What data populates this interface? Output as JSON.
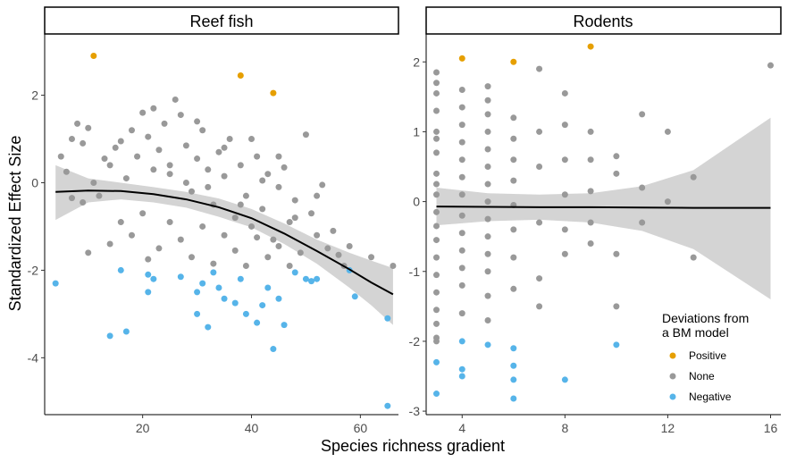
{
  "chart_data": {
    "type": "scatter",
    "ylabel": "Standardized Effect Size",
    "xlabel": "Species richness gradient",
    "legend": {
      "title": "Deviations from a BM model",
      "title_lines": [
        "Deviations from",
        "a BM model"
      ],
      "placement": "bottom-right",
      "entries": [
        {
          "key": "Positive",
          "label": "Positive",
          "color": "#E69F00"
        },
        {
          "key": "None",
          "label": "None",
          "color": "#999999"
        },
        {
          "key": "Negative",
          "label": "Negative",
          "color": "#56B4E9"
        }
      ]
    },
    "panels": [
      {
        "title": "Reef fish",
        "xlim": [
          2,
          67
        ],
        "ylim": [
          -5.3,
          3.4
        ],
        "xticks": [
          20,
          40,
          60
        ],
        "yticks": [
          -4,
          -2,
          0,
          2
        ],
        "fit_line": [
          [
            4,
            -0.21
          ],
          [
            10,
            -0.18
          ],
          [
            16,
            -0.19
          ],
          [
            22,
            -0.26
          ],
          [
            28,
            -0.38
          ],
          [
            34,
            -0.56
          ],
          [
            40,
            -0.81
          ],
          [
            46,
            -1.16
          ],
          [
            52,
            -1.56
          ],
          [
            58,
            -1.98
          ],
          [
            62,
            -2.28
          ],
          [
            66,
            -2.55
          ]
        ],
        "ci_upper": [
          [
            4,
            0.4
          ],
          [
            10,
            0.1
          ],
          [
            16,
            0.0
          ],
          [
            22,
            -0.1
          ],
          [
            28,
            -0.21
          ],
          [
            34,
            -0.36
          ],
          [
            40,
            -0.6
          ],
          [
            46,
            -0.93
          ],
          [
            52,
            -1.3
          ],
          [
            58,
            -1.6
          ],
          [
            62,
            -1.78
          ],
          [
            66,
            -1.95
          ]
        ],
        "ci_lower": [
          [
            4,
            -0.85
          ],
          [
            10,
            -0.45
          ],
          [
            16,
            -0.38
          ],
          [
            22,
            -0.45
          ],
          [
            28,
            -0.57
          ],
          [
            34,
            -0.78
          ],
          [
            40,
            -1.02
          ],
          [
            46,
            -1.4
          ],
          [
            52,
            -1.85
          ],
          [
            58,
            -2.4
          ],
          [
            62,
            -2.8
          ],
          [
            66,
            -3.25
          ]
        ],
        "points": {
          "Positive": [
            [
              11,
              2.9
            ],
            [
              38,
              2.45
            ],
            [
              44,
              2.05
            ]
          ],
          "None": [
            [
              5,
              0.6
            ],
            [
              7,
              1.0
            ],
            [
              8,
              1.35
            ],
            [
              9,
              0.9
            ],
            [
              10,
              1.25
            ],
            [
              6,
              0.25
            ],
            [
              7,
              -0.35
            ],
            [
              9,
              -0.45
            ],
            [
              11,
              0.0
            ],
            [
              12,
              -0.3
            ],
            [
              13,
              0.55
            ],
            [
              14,
              0.4
            ],
            [
              15,
              0.8
            ],
            [
              16,
              0.95
            ],
            [
              17,
              0.1
            ],
            [
              18,
              1.2
            ],
            [
              19,
              0.6
            ],
            [
              20,
              1.6
            ],
            [
              21,
              1.05
            ],
            [
              22,
              0.3
            ],
            [
              23,
              0.75
            ],
            [
              24,
              1.35
            ],
            [
              25,
              0.2
            ],
            [
              26,
              1.9
            ],
            [
              27,
              1.55
            ],
            [
              28,
              0.85
            ],
            [
              29,
              -0.2
            ],
            [
              30,
              0.55
            ],
            [
              31,
              1.2
            ],
            [
              32,
              0.3
            ],
            [
              33,
              -0.5
            ],
            [
              34,
              0.7
            ],
            [
              35,
              0.15
            ],
            [
              36,
              1.0
            ],
            [
              37,
              -0.8
            ],
            [
              38,
              0.4
            ],
            [
              39,
              -0.3
            ],
            [
              40,
              -1.0
            ],
            [
              41,
              0.6
            ],
            [
              42,
              -0.6
            ],
            [
              43,
              0.2
            ],
            [
              44,
              -1.3
            ],
            [
              45,
              -0.1
            ],
            [
              46,
              0.35
            ],
            [
              47,
              -0.9
            ],
            [
              48,
              -0.4
            ],
            [
              49,
              -1.6
            ],
            [
              50,
              1.1
            ],
            [
              51,
              -0.7
            ],
            [
              52,
              -1.2
            ],
            [
              53,
              -0.05
            ],
            [
              54,
              -1.5
            ],
            [
              55,
              -1.1
            ],
            [
              56,
              -1.65
            ],
            [
              57,
              -1.9
            ],
            [
              58,
              -1.45
            ],
            [
              10,
              -1.6
            ],
            [
              14,
              -1.4
            ],
            [
              16,
              -0.9
            ],
            [
              18,
              -1.2
            ],
            [
              20,
              -0.7
            ],
            [
              21,
              -1.75
            ],
            [
              23,
              -1.5
            ],
            [
              25,
              -0.9
            ],
            [
              27,
              -1.3
            ],
            [
              29,
              -1.7
            ],
            [
              31,
              -1.0
            ],
            [
              33,
              -1.85
            ],
            [
              35,
              -1.2
            ],
            [
              37,
              -1.55
            ],
            [
              39,
              -1.9
            ],
            [
              41,
              -1.25
            ],
            [
              43,
              -1.7
            ],
            [
              45,
              -1.45
            ],
            [
              47,
              -1.9
            ],
            [
              25,
              0.4
            ],
            [
              30,
              1.4
            ],
            [
              35,
              0.8
            ],
            [
              40,
              1.0
            ],
            [
              45,
              0.6
            ],
            [
              22,
              1.7
            ],
            [
              28,
              0.0
            ],
            [
              32,
              -0.1
            ],
            [
              38,
              -0.5
            ],
            [
              42,
              0.05
            ],
            [
              48,
              -0.8
            ],
            [
              52,
              -0.3
            ],
            [
              62,
              -1.7
            ],
            [
              66,
              -1.9
            ]
          ],
          "Negative": [
            [
              4,
              -2.3
            ],
            [
              14,
              -3.5
            ],
            [
              16,
              -2.0
            ],
            [
              17,
              -3.4
            ],
            [
              21,
              -2.1
            ],
            [
              21,
              -2.5
            ],
            [
              22,
              -2.2
            ],
            [
              27,
              -2.15
            ],
            [
              30,
              -2.5
            ],
            [
              30,
              -3.0
            ],
            [
              31,
              -2.3
            ],
            [
              32,
              -3.3
            ],
            [
              33,
              -2.05
            ],
            [
              34,
              -2.4
            ],
            [
              35,
              -2.65
            ],
            [
              37,
              -2.75
            ],
            [
              38,
              -2.2
            ],
            [
              39,
              -3.0
            ],
            [
              41,
              -3.2
            ],
            [
              42,
              -2.8
            ],
            [
              43,
              -2.4
            ],
            [
              44,
              -3.8
            ],
            [
              45,
              -2.65
            ],
            [
              46,
              -3.25
            ],
            [
              48,
              -2.05
            ],
            [
              50,
              -2.2
            ],
            [
              51,
              -2.25
            ],
            [
              52,
              -2.2
            ],
            [
              58,
              -2.0
            ],
            [
              59,
              -2.6
            ],
            [
              65,
              -3.1
            ],
            [
              65,
              -5.1
            ]
          ]
        }
      },
      {
        "title": "Rodents",
        "xlim": [
          2.6,
          16.4
        ],
        "ylim": [
          -3.05,
          2.4
        ],
        "xticks": [
          4,
          8,
          12,
          16
        ],
        "yticks": [
          -3,
          -2,
          -1,
          0,
          1,
          2
        ],
        "fit_line": [
          [
            3,
            -0.07
          ],
          [
            5,
            -0.075
          ],
          [
            7,
            -0.08
          ],
          [
            9,
            -0.08
          ],
          [
            11,
            -0.085
          ],
          [
            13,
            -0.09
          ],
          [
            16,
            -0.09
          ]
        ],
        "ci_upper": [
          [
            3,
            0.2
          ],
          [
            5,
            0.12
          ],
          [
            7,
            0.1
          ],
          [
            9,
            0.12
          ],
          [
            11,
            0.22
          ],
          [
            13,
            0.45
          ],
          [
            16,
            1.2
          ]
        ],
        "ci_lower": [
          [
            3,
            -0.34
          ],
          [
            5,
            -0.28
          ],
          [
            7,
            -0.26
          ],
          [
            9,
            -0.3
          ],
          [
            11,
            -0.42
          ],
          [
            13,
            -0.68
          ],
          [
            16,
            -1.4
          ]
        ],
        "points": {
          "Positive": [
            [
              4,
              2.05
            ],
            [
              6,
              2.0
            ],
            [
              9,
              2.22
            ]
          ],
          "None": [
            [
              3,
              1.85
            ],
            [
              3,
              1.7
            ],
            [
              3,
              1.55
            ],
            [
              3,
              1.3
            ],
            [
              3,
              1.0
            ],
            [
              3,
              0.7
            ],
            [
              3,
              0.4
            ],
            [
              3,
              0.1
            ],
            [
              3,
              -0.15
            ],
            [
              3,
              -0.55
            ],
            [
              3,
              -0.8
            ],
            [
              3,
              -1.05
            ],
            [
              3,
              -1.3
            ],
            [
              3,
              -1.55
            ],
            [
              3,
              -1.75
            ],
            [
              3,
              -2.0
            ],
            [
              3,
              0.9
            ],
            [
              3,
              0.25
            ],
            [
              3,
              -0.35
            ],
            [
              3,
              -1.95
            ],
            [
              4,
              1.6
            ],
            [
              4,
              1.35
            ],
            [
              4,
              1.1
            ],
            [
              4,
              0.85
            ],
            [
              4,
              0.6
            ],
            [
              4,
              0.35
            ],
            [
              4,
              0.1
            ],
            [
              4,
              -0.2
            ],
            [
              4,
              -0.45
            ],
            [
              4,
              -0.7
            ],
            [
              4,
              -0.95
            ],
            [
              4,
              -1.2
            ],
            [
              4,
              -1.6
            ],
            [
              5,
              1.65
            ],
            [
              5,
              1.45
            ],
            [
              5,
              1.25
            ],
            [
              5,
              1.0
            ],
            [
              5,
              0.75
            ],
            [
              5,
              0.5
            ],
            [
              5,
              0.25
            ],
            [
              5,
              0.0
            ],
            [
              5,
              -0.25
            ],
            [
              5,
              -0.5
            ],
            [
              5,
              -0.75
            ],
            [
              5,
              -1.0
            ],
            [
              5,
              -1.35
            ],
            [
              5,
              -1.7
            ],
            [
              6,
              1.2
            ],
            [
              6,
              0.9
            ],
            [
              6,
              0.6
            ],
            [
              6,
              0.3
            ],
            [
              6,
              -0.05
            ],
            [
              6,
              -0.4
            ],
            [
              6,
              -0.8
            ],
            [
              6,
              -1.25
            ],
            [
              7,
              1.9
            ],
            [
              7,
              1.0
            ],
            [
              7,
              0.5
            ],
            [
              7,
              -0.3
            ],
            [
              7,
              -1.1
            ],
            [
              7,
              -1.5
            ],
            [
              8,
              1.55
            ],
            [
              8,
              1.1
            ],
            [
              8,
              0.6
            ],
            [
              8,
              0.1
            ],
            [
              8,
              -0.4
            ],
            [
              8,
              -0.75
            ],
            [
              9,
              1.0
            ],
            [
              9,
              0.6
            ],
            [
              9,
              0.15
            ],
            [
              9,
              -0.3
            ],
            [
              9,
              -0.6
            ],
            [
              10,
              0.65
            ],
            [
              10,
              0.4
            ],
            [
              10,
              -0.75
            ],
            [
              10,
              -1.5
            ],
            [
              11,
              1.25
            ],
            [
              11,
              0.2
            ],
            [
              11,
              -0.3
            ],
            [
              12,
              1.0
            ],
            [
              12,
              0.0
            ],
            [
              13,
              0.35
            ],
            [
              13,
              -0.8
            ],
            [
              16,
              1.95
            ]
          ],
          "Negative": [
            [
              3,
              -2.3
            ],
            [
              3,
              -2.75
            ],
            [
              4,
              -2.0
            ],
            [
              4,
              -2.4
            ],
            [
              4,
              -2.5
            ],
            [
              5,
              -2.05
            ],
            [
              6,
              -2.1
            ],
            [
              6,
              -2.35
            ],
            [
              6,
              -2.55
            ],
            [
              6,
              -2.82
            ],
            [
              8,
              -2.55
            ],
            [
              10,
              -2.05
            ]
          ]
        }
      }
    ]
  }
}
